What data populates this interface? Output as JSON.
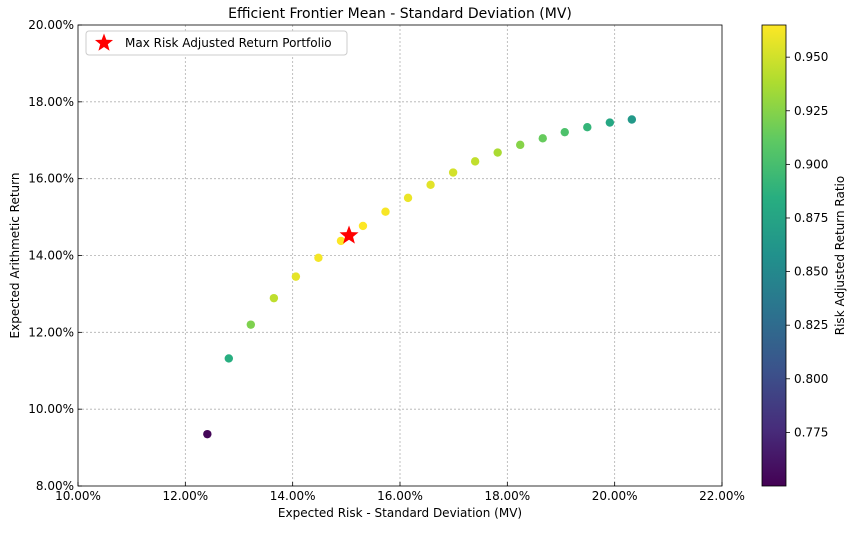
{
  "chart_data": {
    "type": "scatter",
    "title": "Efficient Frontier Mean - Standard Deviation (MV)",
    "xlabel": "Expected Risk - Standard Deviation (MV)",
    "ylabel": "Expected Arithmetic Return",
    "xlim": [
      0.1,
      0.22
    ],
    "ylim": [
      0.08,
      0.2
    ],
    "x_ticks": [
      0.1,
      0.12,
      0.14,
      0.16,
      0.18,
      0.2,
      0.22
    ],
    "y_ticks": [
      0.08,
      0.1,
      0.12,
      0.14,
      0.16,
      0.18,
      0.2
    ],
    "x_tick_labels": [
      "10.00%",
      "12.00%",
      "14.00%",
      "16.00%",
      "18.00%",
      "20.00%",
      "22.00%"
    ],
    "y_tick_labels": [
      "8.00%",
      "10.00%",
      "12.00%",
      "14.00%",
      "16.00%",
      "18.00%",
      "20.00%"
    ],
    "grid": true,
    "colorbar": {
      "label": "Risk Adjusted Return Ratio",
      "colormap": "viridis",
      "range": [
        0.75,
        0.965
      ],
      "ticks": [
        0.775,
        0.8,
        0.825,
        0.85,
        0.875,
        0.9,
        0.925,
        0.95
      ],
      "tick_labels": [
        "0.775",
        "0.800",
        "0.825",
        "0.850",
        "0.875",
        "0.900",
        "0.925",
        "0.950"
      ]
    },
    "legend": {
      "placement": "top-left",
      "entries": [
        "Max Risk Adjusted Return Portfolio"
      ]
    },
    "series": [
      {
        "name": "Efficient Frontier",
        "points": [
          {
            "x": 0.1241,
            "y": 0.0935,
            "ratio": 0.753
          },
          {
            "x": 0.1281,
            "y": 0.1132,
            "ratio": 0.884
          },
          {
            "x": 0.1322,
            "y": 0.122,
            "ratio": 0.922
          },
          {
            "x": 0.1365,
            "y": 0.1289,
            "ratio": 0.944
          },
          {
            "x": 0.1406,
            "y": 0.1345,
            "ratio": 0.957
          },
          {
            "x": 0.1448,
            "y": 0.1394,
            "ratio": 0.962
          },
          {
            "x": 0.149,
            "y": 0.1438,
            "ratio": 0.965
          },
          {
            "x": 0.1531,
            "y": 0.1477,
            "ratio": 0.965
          },
          {
            "x": 0.1573,
            "y": 0.1514,
            "ratio": 0.963
          },
          {
            "x": 0.1615,
            "y": 0.155,
            "ratio": 0.959
          },
          {
            "x": 0.1657,
            "y": 0.1584,
            "ratio": 0.956
          },
          {
            "x": 0.1699,
            "y": 0.1616,
            "ratio": 0.951
          },
          {
            "x": 0.174,
            "y": 0.1645,
            "ratio": 0.945
          },
          {
            "x": 0.1782,
            "y": 0.1668,
            "ratio": 0.937
          },
          {
            "x": 0.1824,
            "y": 0.1688,
            "ratio": 0.925
          },
          {
            "x": 0.1866,
            "y": 0.1705,
            "ratio": 0.914
          },
          {
            "x": 0.1907,
            "y": 0.1721,
            "ratio": 0.903
          },
          {
            "x": 0.1949,
            "y": 0.1734,
            "ratio": 0.891
          },
          {
            "x": 0.1991,
            "y": 0.1746,
            "ratio": 0.878
          },
          {
            "x": 0.2032,
            "y": 0.1754,
            "ratio": 0.865
          }
        ]
      }
    ],
    "highlight": {
      "name": "Max Risk Adjusted Return Portfolio",
      "x": 0.1505,
      "y": 0.1452,
      "marker": "star",
      "color": "#ff0000"
    }
  }
}
